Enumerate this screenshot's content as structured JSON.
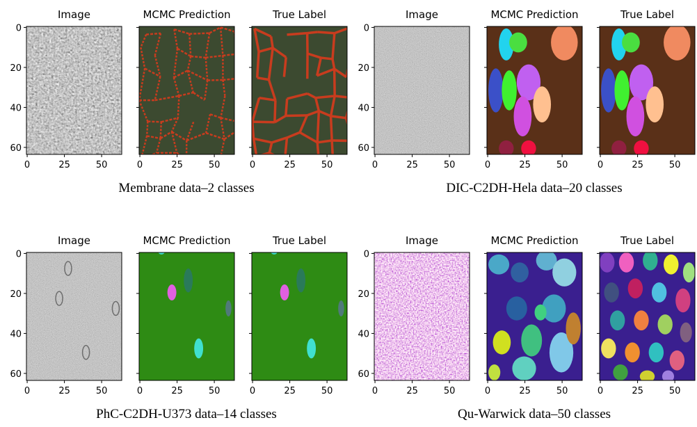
{
  "figure": {
    "groups": [
      {
        "caption": "Membrane data–2 classes",
        "titles": [
          "Image",
          "MCMC Prediction",
          "True Label"
        ]
      },
      {
        "caption": "DIC-C2DH-Hela data–20 classes",
        "titles": [
          "Image",
          "MCMC Prediction",
          "True Label"
        ]
      },
      {
        "caption": "PhC-C2DH-U373 data–14 classes",
        "titles": [
          "Image",
          "MCMC Prediction",
          "True Label"
        ]
      },
      {
        "caption": "Qu-Warwick data–50 classes",
        "titles": [
          "Image",
          "MCMC Prediction",
          "True Label"
        ]
      }
    ],
    "yticks": [
      "0",
      "20",
      "40",
      "60"
    ],
    "xticks": [
      "0",
      "25",
      "50"
    ]
  }
}
